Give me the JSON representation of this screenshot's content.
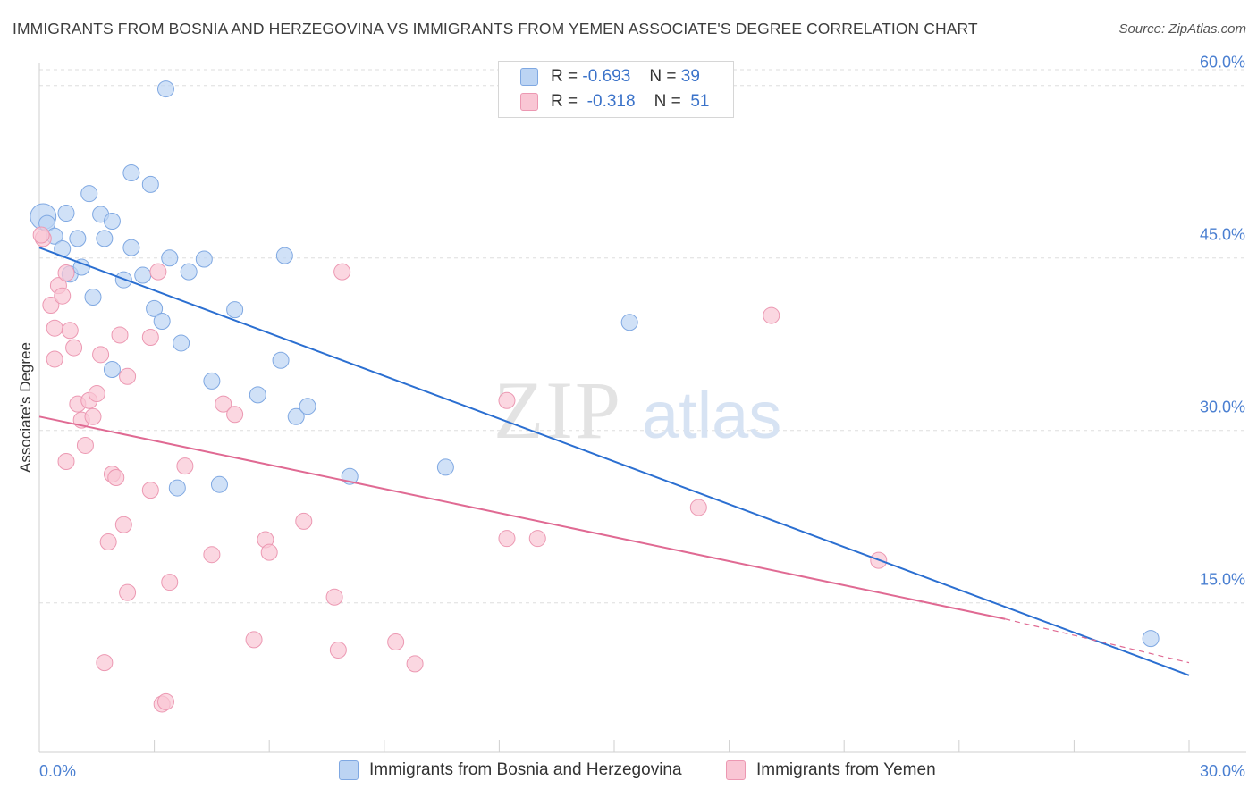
{
  "title": "IMMIGRANTS FROM BOSNIA AND HERZEGOVINA VS IMMIGRANTS FROM YEMEN ASSOCIATE'S DEGREE CORRELATION CHART",
  "source": "Source: ZipAtlas.com",
  "watermark": {
    "zip": "ZIP",
    "atlas": "atlas"
  },
  "legend": {
    "series1": {
      "r_label": "R =",
      "r_value": "-0.693",
      "n_label": "N =",
      "n_value": "39"
    },
    "series2": {
      "r_label": "R =",
      "r_value": "-0.318",
      "n_label": "N =",
      "n_value": "51"
    }
  },
  "bottom_legend": {
    "series1": "Immigrants from Bosnia and Herzegovina",
    "series2": "Immigrants from Yemen"
  },
  "colors": {
    "series1_fill": "#bcd4f3",
    "series1_stroke": "#7fa8e2",
    "series1_line": "#2b6fd1",
    "series2_fill": "#f9c6d4",
    "series2_stroke": "#ec98b2",
    "series2_line": "#e06a93",
    "grid": "#dddddd",
    "axis_text": "#4a7fd1"
  },
  "chart_data": {
    "type": "scatter",
    "xlabel": "",
    "ylabel": "Associate's Degree",
    "xlim": [
      0,
      30
    ],
    "ylim": [
      2,
      62
    ],
    "x_tick_labels": [
      "0.0%",
      "30.0%"
    ],
    "y_ticks": [
      15,
      30,
      45,
      60
    ],
    "y_tick_labels": [
      "15.0%",
      "30.0%",
      "45.0%",
      "60.0%"
    ],
    "grid": true,
    "legend_position": "top-center",
    "series": [
      {
        "name": "Immigrants from Bosnia and Herzegovina",
        "points": [
          [
            0.1,
            48.6,
            1.6
          ],
          [
            0.2,
            48.0,
            1
          ],
          [
            0.4,
            46.9,
            1
          ],
          [
            0.6,
            45.8,
            1
          ],
          [
            0.7,
            48.9,
            1
          ],
          [
            0.8,
            43.6,
            1
          ],
          [
            1.0,
            46.7,
            1
          ],
          [
            1.1,
            44.2,
            1
          ],
          [
            1.3,
            50.6,
            1
          ],
          [
            1.4,
            41.6,
            1
          ],
          [
            1.6,
            48.8,
            1
          ],
          [
            1.7,
            46.7,
            1
          ],
          [
            1.9,
            48.2,
            1
          ],
          [
            1.9,
            35.3,
            1
          ],
          [
            2.2,
            43.1,
            1
          ],
          [
            2.4,
            45.9,
            1
          ],
          [
            2.4,
            52.4,
            1
          ],
          [
            2.7,
            43.5,
            1
          ],
          [
            2.9,
            51.4,
            1
          ],
          [
            3.0,
            40.6,
            1
          ],
          [
            3.2,
            39.5,
            1
          ],
          [
            3.3,
            59.7,
            1
          ],
          [
            3.4,
            45.0,
            1
          ],
          [
            3.6,
            25.0,
            1
          ],
          [
            3.7,
            37.6,
            1
          ],
          [
            3.9,
            43.8,
            1
          ],
          [
            4.3,
            44.9,
            1
          ],
          [
            4.5,
            34.3,
            1
          ],
          [
            4.7,
            25.3,
            1
          ],
          [
            5.1,
            40.5,
            1
          ],
          [
            5.7,
            33.1,
            1
          ],
          [
            6.3,
            36.1,
            1
          ],
          [
            6.4,
            45.2,
            1
          ],
          [
            6.7,
            31.2,
            1
          ],
          [
            7.0,
            32.1,
            1
          ],
          [
            8.1,
            26.0,
            1
          ],
          [
            10.6,
            26.8,
            1
          ],
          [
            15.4,
            39.4,
            1
          ],
          [
            29.0,
            11.9,
            1
          ]
        ],
        "trend": {
          "x": [
            0,
            30
          ],
          "y": [
            45.9,
            8.7
          ]
        }
      },
      {
        "name": "Immigrants from Yemen",
        "points": [
          [
            0.1,
            46.7,
            1
          ],
          [
            0.3,
            40.9,
            1
          ],
          [
            0.4,
            38.9,
            1
          ],
          [
            0.4,
            36.2,
            1
          ],
          [
            0.5,
            42.6,
            1
          ],
          [
            0.6,
            41.7,
            1
          ],
          [
            0.7,
            43.7,
            1
          ],
          [
            0.7,
            27.3,
            1
          ],
          [
            0.8,
            38.7,
            1
          ],
          [
            0.9,
            37.2,
            1
          ],
          [
            1.0,
            32.3,
            1
          ],
          [
            1.1,
            30.9,
            1
          ],
          [
            1.2,
            28.7,
            1
          ],
          [
            1.3,
            32.6,
            1
          ],
          [
            1.4,
            31.2,
            1
          ],
          [
            1.5,
            33.2,
            1
          ],
          [
            1.6,
            36.6,
            1
          ],
          [
            1.7,
            9.8,
            1
          ],
          [
            1.8,
            20.3,
            1
          ],
          [
            1.9,
            26.2,
            1
          ],
          [
            2.0,
            25.9,
            1
          ],
          [
            2.1,
            38.3,
            1
          ],
          [
            2.2,
            21.8,
            1
          ],
          [
            2.3,
            34.7,
            1
          ],
          [
            2.3,
            15.9,
            1
          ],
          [
            2.9,
            38.1,
            1
          ],
          [
            2.9,
            24.8,
            1
          ],
          [
            3.1,
            43.8,
            1
          ],
          [
            3.2,
            6.2,
            1
          ],
          [
            3.3,
            6.4,
            1
          ],
          [
            3.4,
            16.8,
            1
          ],
          [
            3.8,
            26.9,
            1
          ],
          [
            4.5,
            19.2,
            1
          ],
          [
            4.8,
            32.3,
            1
          ],
          [
            5.1,
            31.4,
            1
          ],
          [
            5.6,
            11.8,
            1
          ],
          [
            5.9,
            20.5,
            1
          ],
          [
            6.0,
            19.4,
            1
          ],
          [
            6.9,
            22.1,
            1
          ],
          [
            7.7,
            15.5,
            1
          ],
          [
            7.8,
            10.9,
            1
          ],
          [
            7.9,
            43.8,
            1
          ],
          [
            9.3,
            11.6,
            1
          ],
          [
            9.8,
            9.7,
            1
          ],
          [
            12.2,
            32.6,
            1
          ],
          [
            12.2,
            20.6,
            1
          ],
          [
            13.0,
            20.6,
            1
          ],
          [
            17.2,
            23.3,
            1
          ],
          [
            19.1,
            40.0,
            1
          ],
          [
            21.9,
            18.7,
            1
          ],
          [
            0.05,
            47.0,
            1
          ]
        ],
        "trend": {
          "x": [
            0,
            25.2
          ],
          "y": [
            31.2,
            13.6
          ]
        },
        "trend_dashed": {
          "x": [
            25.2,
            30
          ],
          "y": [
            13.6,
            9.8
          ]
        }
      }
    ]
  }
}
